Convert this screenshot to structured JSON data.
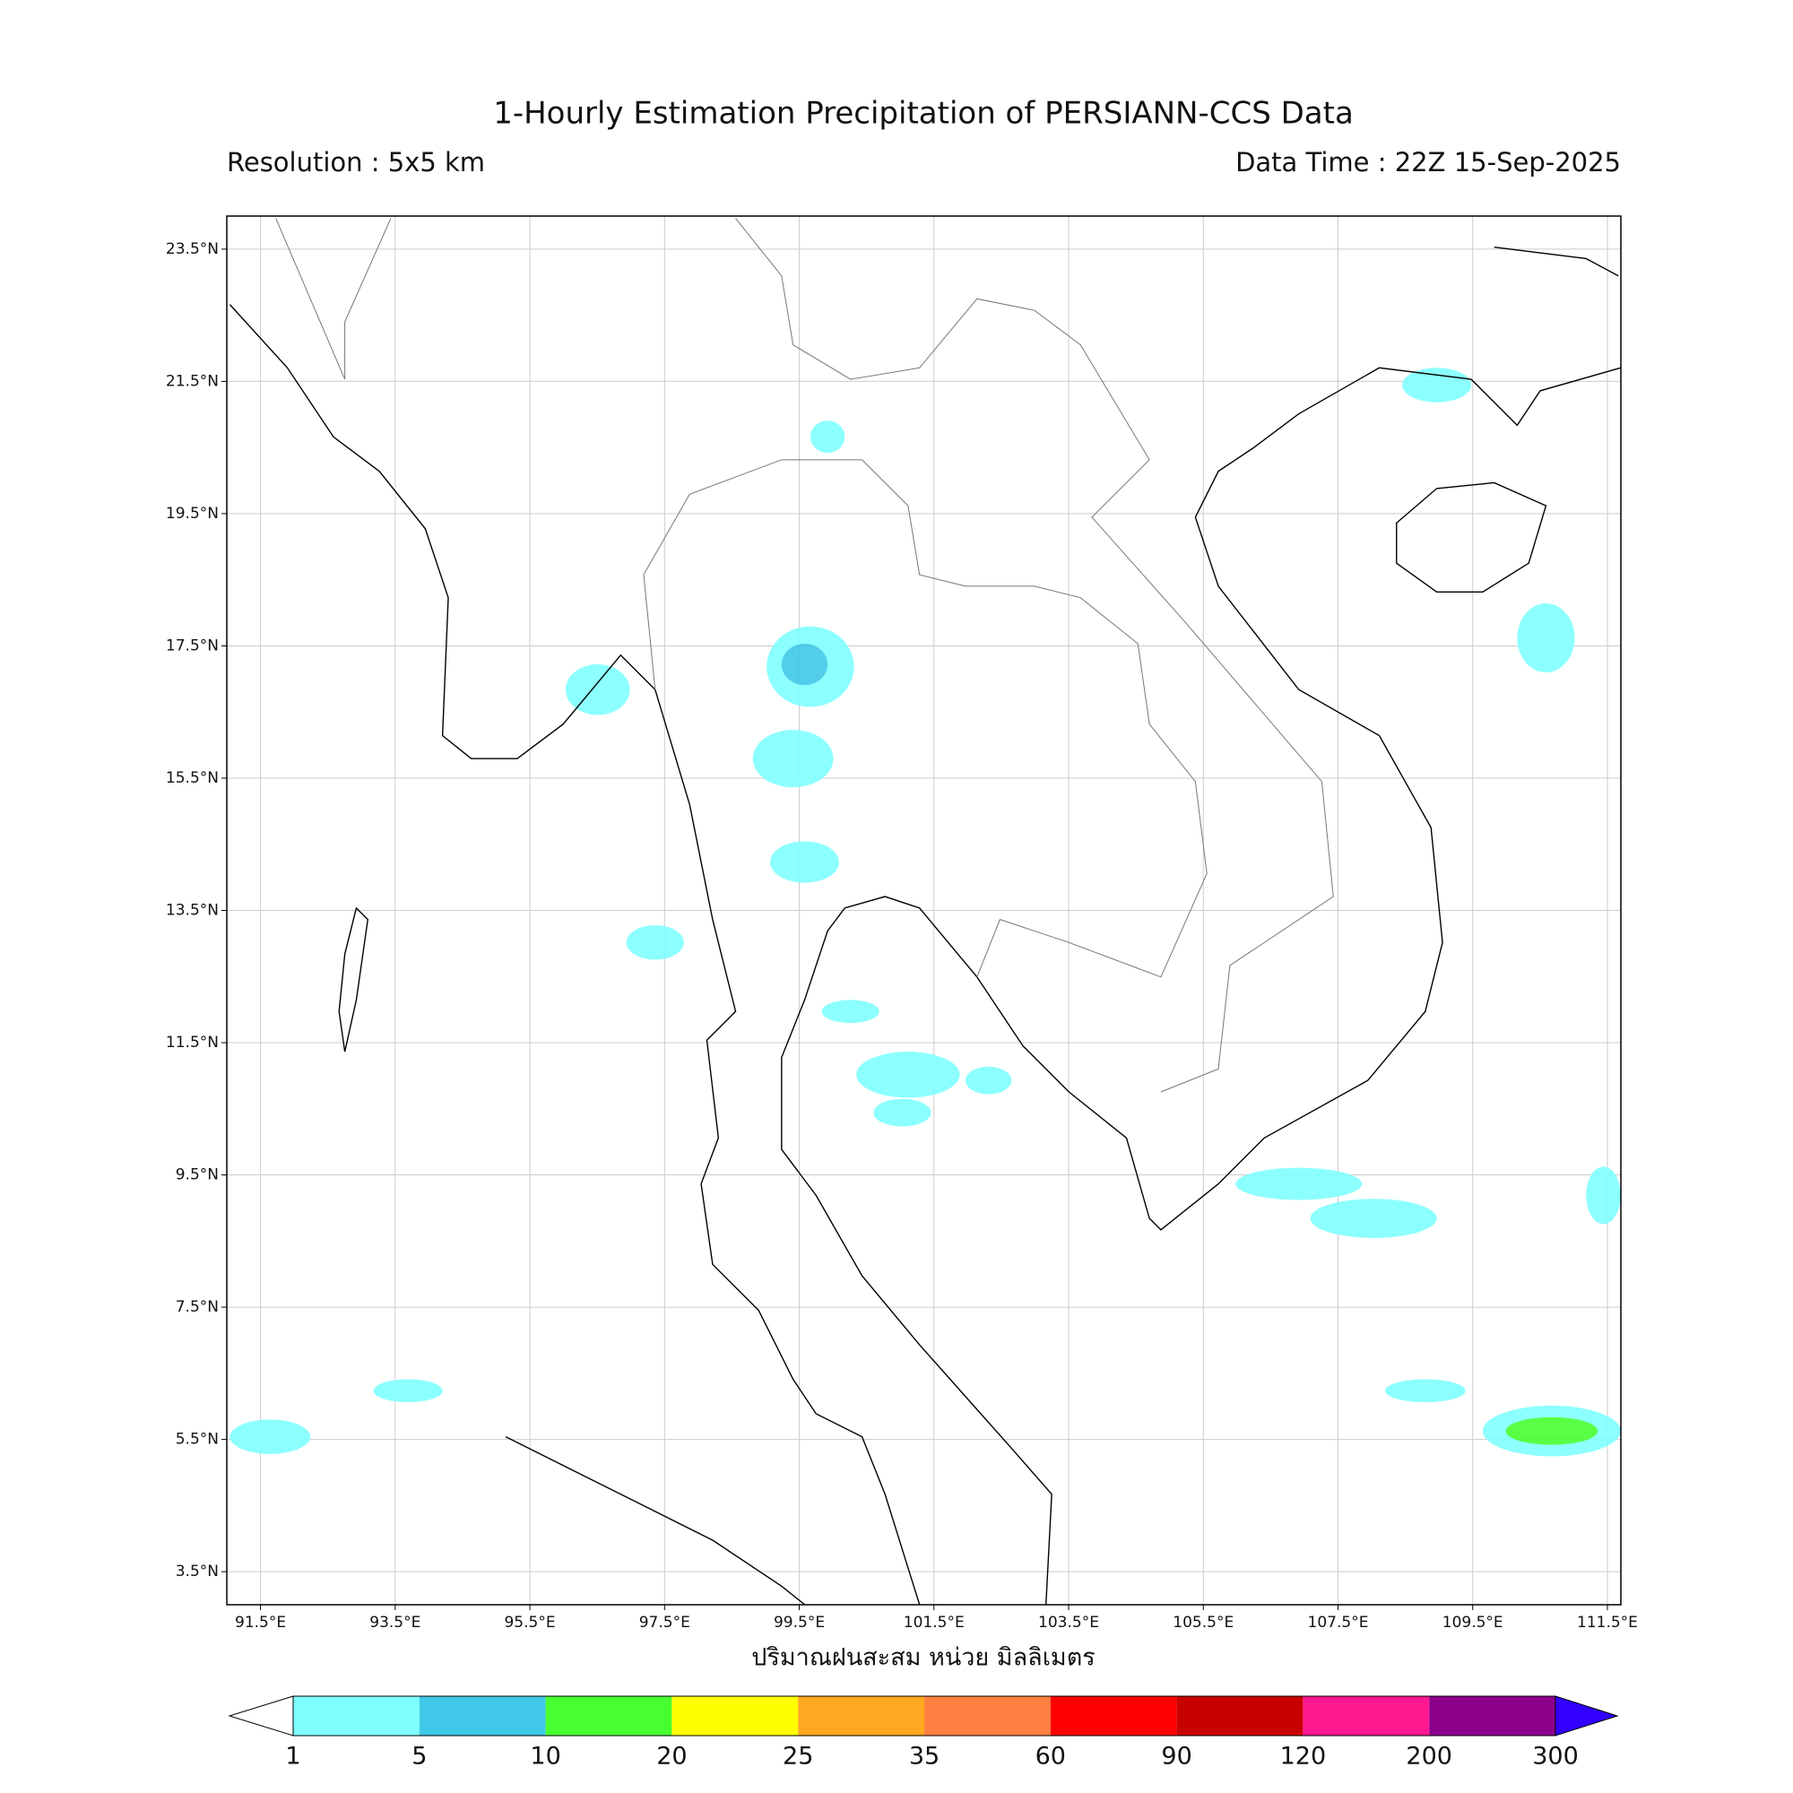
{
  "header": {
    "title": "1-Hourly Estimation Precipitation of PERSIANN-CCS Data",
    "resolution": "Resolution : 5x5 km",
    "data_time": "Data Time : 22Z 15-Sep-2025"
  },
  "map": {
    "xlim": [
      91,
      111.7
    ],
    "ylim": [
      3,
      24
    ],
    "xticks": [
      {
        "value": 91.5,
        "label": "91.5°E"
      },
      {
        "value": 93.5,
        "label": "93.5°E"
      },
      {
        "value": 95.5,
        "label": "95.5°E"
      },
      {
        "value": 97.5,
        "label": "97.5°E"
      },
      {
        "value": 99.5,
        "label": "99.5°E"
      },
      {
        "value": 101.5,
        "label": "101.5°E"
      },
      {
        "value": 103.5,
        "label": "103.5°E"
      },
      {
        "value": 105.5,
        "label": "105.5°E"
      },
      {
        "value": 107.5,
        "label": "107.5°E"
      },
      {
        "value": 109.5,
        "label": "109.5°E"
      },
      {
        "value": 111.5,
        "label": "111.5°E"
      }
    ],
    "yticks": [
      {
        "value": 3.5,
        "label": "3.5°N"
      },
      {
        "value": 5.5,
        "label": "5.5°N"
      },
      {
        "value": 7.5,
        "label": "7.5°N"
      },
      {
        "value": 9.5,
        "label": "9.5°N"
      },
      {
        "value": 11.5,
        "label": "11.5°N"
      },
      {
        "value": 13.5,
        "label": "13.5°N"
      },
      {
        "value": 15.5,
        "label": "15.5°N"
      },
      {
        "value": 17.5,
        "label": "17.5°N"
      },
      {
        "value": 19.5,
        "label": "19.5°N"
      },
      {
        "value": 21.5,
        "label": "21.5°N"
      },
      {
        "value": 23.5,
        "label": "23.5°N"
      }
    ],
    "x_label": "ปริมาณฝนสะสม หน่วย มิลลิเมตร"
  },
  "colorbar": {
    "levels": [
      1,
      5,
      10,
      20,
      25,
      35,
      60,
      90,
      120,
      200,
      300
    ],
    "colors": [
      "#80ffff",
      "#40c8e8",
      "#48ff30",
      "#ffff00",
      "#ffa820",
      "#ff8040",
      "#ff0000",
      "#c80000",
      "#ff1890",
      "#8c008c"
    ],
    "under_color": "#ffffff",
    "over_color": "#3200ff"
  }
}
